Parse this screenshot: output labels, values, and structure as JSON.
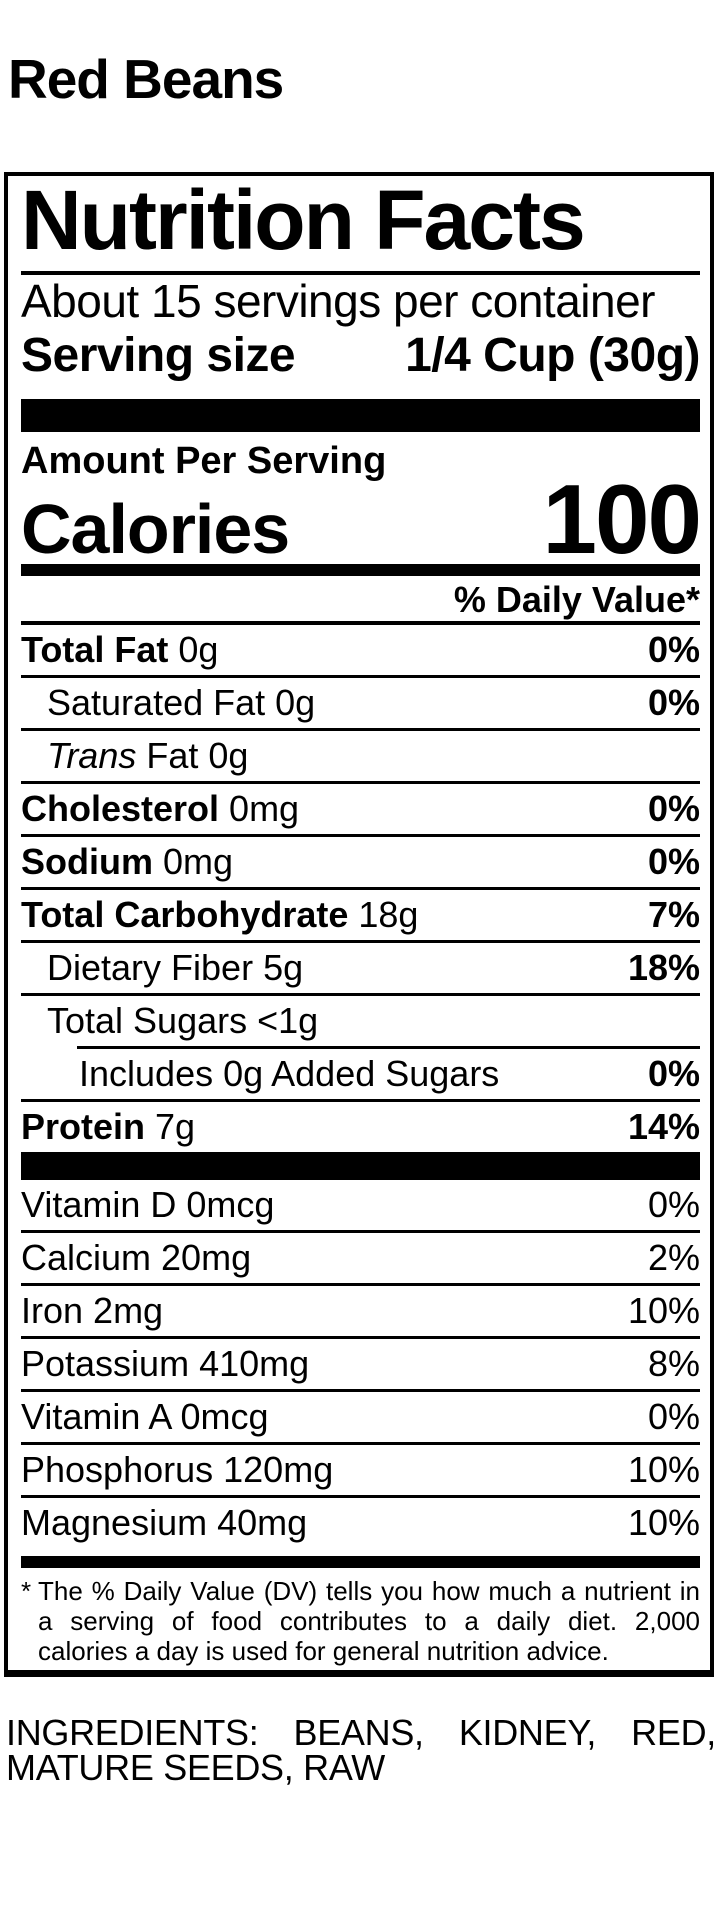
{
  "page": {
    "title": "Red Beans"
  },
  "colors": {
    "text": "#000000",
    "background": "#ffffff"
  },
  "label": {
    "title": "Nutrition Facts",
    "servings_per_container": "About 15 servings per container",
    "serving_size": {
      "label": "Serving size",
      "value": "1/4 Cup (30g)"
    },
    "amount_per_serving": "Amount Per Serving",
    "calories": {
      "label": "Calories",
      "value": "100"
    },
    "daily_value_header": "% Daily Value*",
    "nutrients": [
      {
        "name": "Total Fat",
        "amount": "0g",
        "dv": "0%",
        "bold": true,
        "italic": false,
        "indent": 0,
        "divider": "full"
      },
      {
        "name": "Saturated Fat",
        "amount": "0g",
        "dv": "0%",
        "bold": false,
        "italic": false,
        "indent": 26,
        "divider": "full"
      },
      {
        "name": "Trans",
        "amount": "Fat 0g",
        "dv": "",
        "bold": false,
        "italic": true,
        "indent": 26,
        "divider": "full"
      },
      {
        "name": "Cholesterol",
        "amount": "0mg",
        "dv": "0%",
        "bold": true,
        "italic": false,
        "indent": 0,
        "divider": "full"
      },
      {
        "name": "Sodium",
        "amount": "0mg",
        "dv": "0%",
        "bold": true,
        "italic": false,
        "indent": 0,
        "divider": "full"
      },
      {
        "name": "Total Carbohydrate",
        "amount": "18g",
        "dv": "7%",
        "bold": true,
        "italic": false,
        "indent": 0,
        "divider": "full"
      },
      {
        "name": "Dietary Fiber",
        "amount": "5g",
        "dv": "18%",
        "bold": false,
        "italic": false,
        "indent": 26,
        "divider": "full"
      },
      {
        "name": "Total Sugars",
        "amount": "<1g",
        "dv": "",
        "bold": false,
        "italic": false,
        "indent": 26,
        "divider": "indented"
      },
      {
        "name": "Includes 0g Added Sugars",
        "amount": "",
        "dv": "0%",
        "bold": false,
        "italic": false,
        "indent": 58,
        "divider": "full"
      },
      {
        "name": "Protein",
        "amount": "7g",
        "dv": "14%",
        "bold": true,
        "italic": false,
        "indent": 0,
        "divider": "none"
      }
    ],
    "micronutrients": [
      {
        "name": "Vitamin D",
        "amount": "0mcg",
        "dv": "0%",
        "bold": false,
        "italic": false,
        "indent": 0,
        "divider": "full"
      },
      {
        "name": "Calcium",
        "amount": "20mg",
        "dv": "2%",
        "bold": false,
        "italic": false,
        "indent": 0,
        "divider": "full"
      },
      {
        "name": "Iron",
        "amount": "2mg",
        "dv": "10%",
        "bold": false,
        "italic": false,
        "indent": 0,
        "divider": "full"
      },
      {
        "name": "Potassium",
        "amount": "410mg",
        "dv": "8%",
        "bold": false,
        "italic": false,
        "indent": 0,
        "divider": "full"
      },
      {
        "name": "Vitamin A",
        "amount": "0mcg",
        "dv": "0%",
        "bold": false,
        "italic": false,
        "indent": 0,
        "divider": "full"
      },
      {
        "name": "Phosphorus",
        "amount": "120mg",
        "dv": "10%",
        "bold": false,
        "italic": false,
        "indent": 0,
        "divider": "full"
      },
      {
        "name": "Magnesium",
        "amount": "40mg",
        "dv": "10%",
        "bold": false,
        "italic": false,
        "indent": 0,
        "divider": "none"
      }
    ],
    "footnote_marker": "*",
    "footnote": "The % Daily Value (DV) tells you how much a nutrient in a serving of food contributes to a daily diet. 2,000 calories a day is used for general nutrition advice."
  },
  "ingredients": "INGREDIENTS: BEANS, KIDNEY, RED, MATURE SEEDS, RAW"
}
